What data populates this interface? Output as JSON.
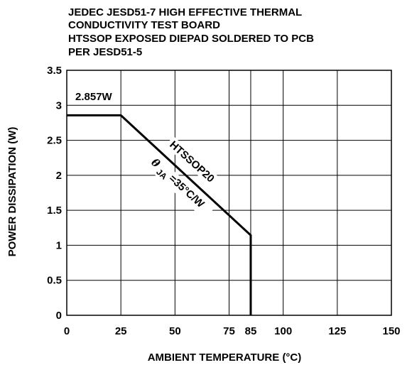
{
  "chart_data": {
    "type": "line",
    "title_lines": [
      "JEDEC JESD51-7 HIGH EFFECTIVE THERMAL",
      "CONDUCTIVITY TEST BOARD",
      "HTSSOP EXPOSED DIEPAD SOLDERED TO PCB",
      "PER JESD51-5"
    ],
    "xlabel": "AMBIENT TEMPERATURE (°C)",
    "ylabel": "POWER DISSIPATION (W)",
    "xlim": [
      0,
      150
    ],
    "ylim": [
      0,
      3.5
    ],
    "x_ticks": [
      0,
      25,
      50,
      75,
      85,
      100,
      125,
      150
    ],
    "x_tick_labels": [
      "0",
      "25",
      "50",
      "75",
      "85",
      "100",
      "125",
      "150"
    ],
    "y_ticks": [
      0,
      0.5,
      1,
      1.5,
      2,
      2.5,
      3,
      3.5
    ],
    "y_tick_labels": [
      "0",
      "0.5",
      "1",
      "1.5",
      "2",
      "2.5",
      "3",
      "3.5"
    ],
    "grid": true,
    "series": [
      {
        "name": "HTSSOP20",
        "x": [
          0,
          25,
          85,
          85
        ],
        "y": [
          2.857,
          2.857,
          1.143,
          0
        ]
      }
    ],
    "annotations": {
      "max_power": "2.857W",
      "package": "HTSSOP20",
      "theta_symbol": "θ",
      "theta_sub": "JA",
      "theta_value": "=35°C/W"
    }
  }
}
